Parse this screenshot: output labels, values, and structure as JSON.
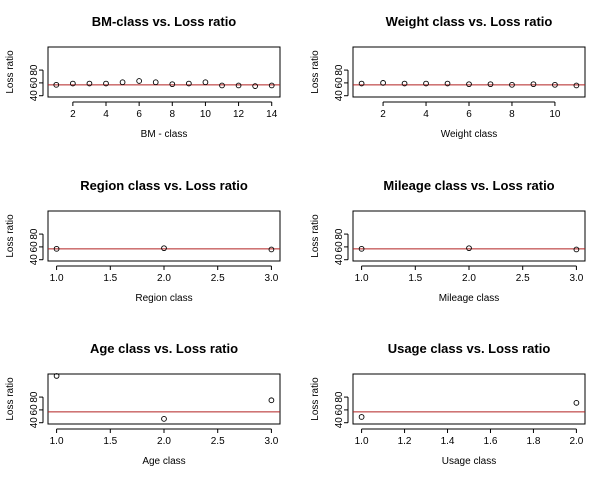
{
  "chart_data": [
    {
      "type": "scatter",
      "title": "BM-class vs. Loss ratio",
      "xlabel": "BM - class",
      "ylabel": "Loss ratio",
      "x": [
        1,
        2,
        3,
        4,
        5,
        6,
        7,
        8,
        9,
        10,
        11,
        12,
        13,
        14
      ],
      "y": [
        57,
        59,
        59,
        59,
        61,
        63,
        61,
        58,
        59,
        61,
        56,
        56,
        55,
        56
      ],
      "xlim": [
        0.5,
        14.5
      ],
      "ylim": [
        38,
        116
      ],
      "xticks": [
        2,
        4,
        6,
        8,
        10,
        12,
        14
      ],
      "yticks": [
        40,
        60,
        80
      ],
      "reference_y": 57
    },
    {
      "type": "scatter",
      "title": "Weight class vs. Loss ratio",
      "xlabel": "Weight class",
      "ylabel": "Loss ratio",
      "x": [
        1,
        2,
        3,
        4,
        5,
        6,
        7,
        8,
        9,
        10,
        11
      ],
      "y": [
        59,
        60,
        59,
        59,
        59,
        58,
        58,
        57,
        58,
        57,
        56
      ],
      "xlim": [
        0.6,
        11.4
      ],
      "ylim": [
        38,
        116
      ],
      "xticks": [
        2,
        4,
        6,
        8,
        10
      ],
      "yticks": [
        40,
        60,
        80
      ],
      "reference_y": 57
    },
    {
      "type": "scatter",
      "title": "Region class vs. Loss ratio",
      "xlabel": "Region class",
      "ylabel": "Loss ratio",
      "x": [
        1,
        2,
        3
      ],
      "y": [
        57,
        58,
        56
      ],
      "xlim": [
        0.92,
        3.08
      ],
      "ylim": [
        38,
        116
      ],
      "xticks": [
        1.0,
        1.5,
        2.0,
        2.5,
        3.0
      ],
      "yticks": [
        40,
        60,
        80
      ],
      "reference_y": 57
    },
    {
      "type": "scatter",
      "title": "Mileage class vs. Loss ratio",
      "xlabel": "Mileage class",
      "ylabel": "Loss ratio",
      "x": [
        1,
        2,
        3
      ],
      "y": [
        57,
        58,
        56
      ],
      "xlim": [
        0.92,
        3.08
      ],
      "ylim": [
        38,
        116
      ],
      "xticks": [
        1.0,
        1.5,
        2.0,
        2.5,
        3.0
      ],
      "yticks": [
        40,
        60,
        80
      ],
      "reference_y": 57
    },
    {
      "type": "scatter",
      "title": "Age class vs. Loss ratio",
      "xlabel": "Age class",
      "ylabel": "Loss ratio",
      "x": [
        1,
        2,
        3
      ],
      "y": [
        113,
        46,
        75
      ],
      "xlim": [
        0.92,
        3.08
      ],
      "ylim": [
        38,
        116
      ],
      "xticks": [
        1.0,
        1.5,
        2.0,
        2.5,
        3.0
      ],
      "yticks": [
        40,
        60,
        80
      ],
      "reference_y": 57
    },
    {
      "type": "scatter",
      "title": "Usage class vs. Loss ratio",
      "xlabel": "Usage class",
      "ylabel": "Loss ratio",
      "x": [
        1,
        2
      ],
      "y": [
        49,
        71
      ],
      "xlim": [
        0.96,
        2.04
      ],
      "ylim": [
        38,
        116
      ],
      "xticks": [
        1.0,
        1.2,
        1.4,
        1.6,
        1.8,
        2.0
      ],
      "yticks": [
        40,
        60,
        80
      ],
      "reference_y": 57
    }
  ],
  "colors": {
    "reference_line": "#b22222",
    "points": "#000000",
    "background": "#ffffff"
  }
}
